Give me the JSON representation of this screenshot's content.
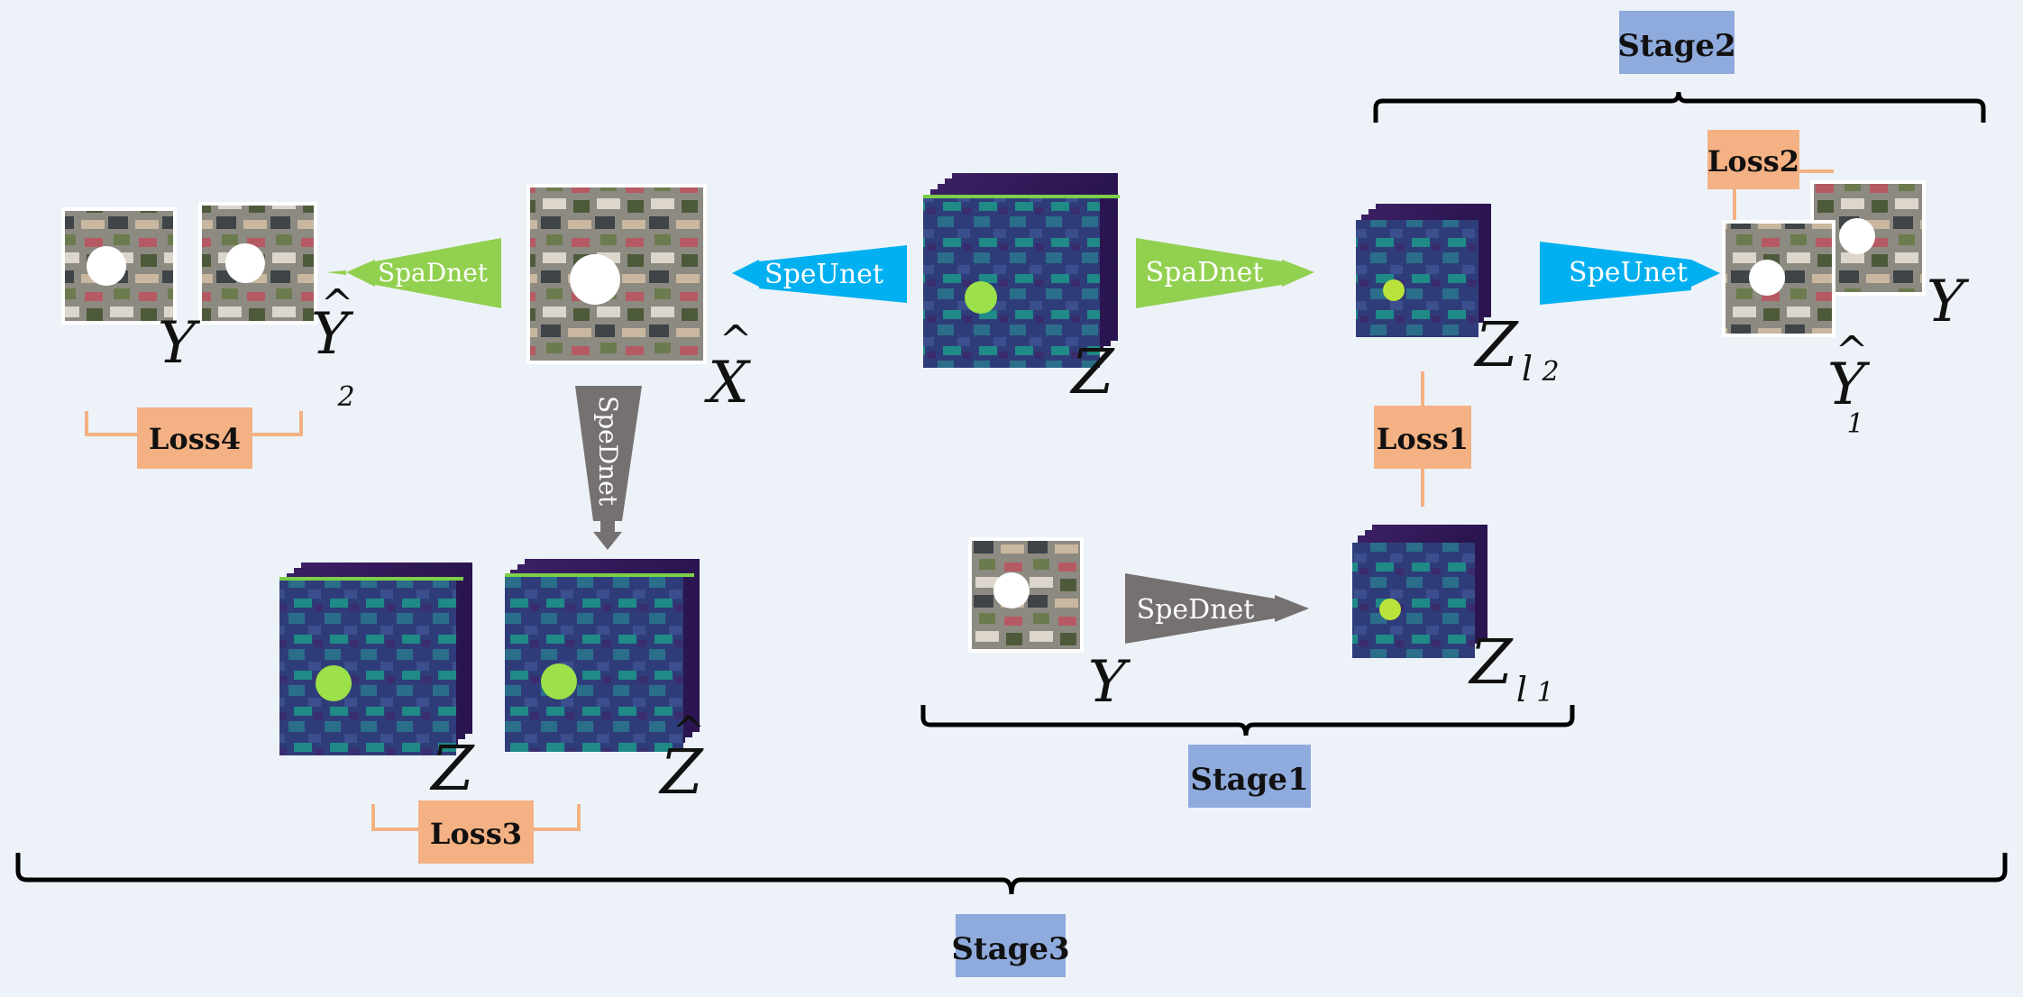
{
  "colors": {
    "background": "#edf2f9",
    "stage_box": "#8faadc",
    "loss_box": "#f4b183",
    "spadnet": "#92d050",
    "speunet": "#00b0f0",
    "spednet": "#767171",
    "bracket": "#000000"
  },
  "stages": {
    "stage1": "Stage1",
    "stage2": "Stage2",
    "stage3": "Stage3"
  },
  "losses": {
    "loss1": "Loss1",
    "loss2": "Loss2",
    "loss3": "Loss3",
    "loss4": "Loss4"
  },
  "networks": {
    "spadnet": "SpaDnet",
    "speunet": "SpeUnet",
    "spednet": "SpeDnet"
  },
  "symbols": {
    "Y": "Y",
    "Z": "Z",
    "X": "X",
    "hat": "^",
    "sub_l": "l",
    "sub_1": "1",
    "sub_2": "2"
  }
}
